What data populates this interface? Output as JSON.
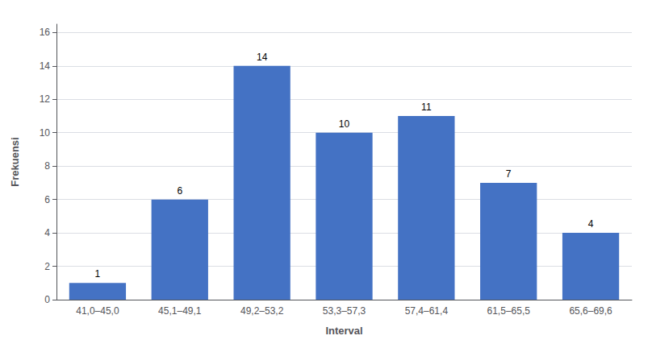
{
  "chart_data": {
    "type": "bar",
    "categories": [
      "41,0–45,0",
      "45,1–49,1",
      "49,2–53,2",
      "53,3–57,3",
      "57,4–61,4",
      "61,5–65,5",
      "65,6–69,6"
    ],
    "values": [
      1,
      6,
      14,
      10,
      11,
      7,
      4
    ],
    "color": "#4472c4",
    "xlabel": "Interval",
    "ylabel": "Frekuensi",
    "ylim": [
      0,
      16.5
    ],
    "yticks": [
      0,
      2,
      4,
      6,
      8,
      10,
      12,
      14,
      16
    ],
    "grid": true,
    "data_labels": true
  }
}
